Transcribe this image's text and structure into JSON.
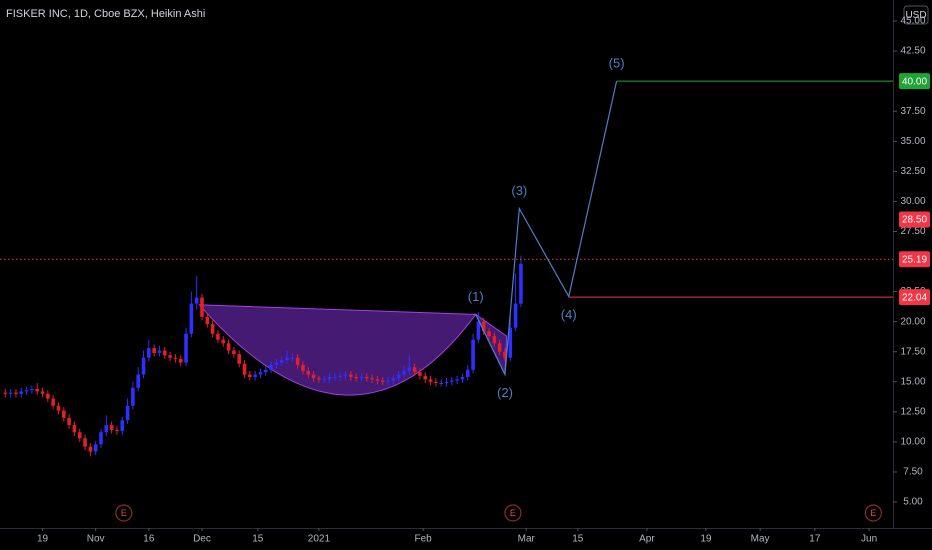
{
  "chart_data": {
    "type": "candlestick",
    "title": "FISKER INC, 1D, Cboe BZX, Heikin Ashi",
    "currency": "USD",
    "colors": {
      "up": "#2f2fff",
      "down": "#e3202a"
    },
    "open": [
      14.1,
      14.0,
      14.1,
      14.0,
      14.2,
      14.3,
      14.4,
      14.2,
      14.0,
      13.6,
      13.0,
      12.6,
      12.0,
      11.4,
      10.8,
      10.3,
      9.6,
      9.2,
      9.8,
      10.8,
      11.4,
      11.0,
      10.9,
      11.8,
      13.0,
      14.5,
      15.6,
      17.0,
      17.8,
      17.4,
      17.6,
      17.2,
      17.0,
      16.9,
      16.6,
      19.0,
      21.5,
      22.0,
      20.4,
      19.8,
      19.0,
      18.5,
      18.2,
      17.6,
      17.3,
      16.5,
      15.6,
      15.4,
      15.6,
      15.8,
      16.0,
      16.4,
      16.6,
      16.8,
      17.0,
      17.0,
      16.4,
      15.9,
      15.6,
      15.3,
      15.2,
      15.2,
      15.4,
      15.4,
      15.5,
      15.6,
      15.4,
      15.3,
      15.4,
      15.3,
      15.2,
      15.1,
      15.0,
      15.1,
      15.3,
      15.6,
      15.9,
      16.2,
      15.8,
      15.5,
      15.2,
      15.0,
      14.9,
      14.9,
      15.0,
      15.1,
      15.2,
      15.4,
      16.0,
      18.5,
      20.0,
      19.2,
      18.8,
      18.2,
      17.5,
      17.0,
      19.5,
      21.5
    ],
    "high": [
      14.4,
      14.4,
      14.4,
      14.5,
      14.6,
      14.7,
      14.9,
      14.5,
      14.3,
      13.9,
      13.3,
      12.9,
      12.3,
      11.7,
      11.1,
      10.6,
      9.9,
      10.1,
      11.1,
      12.2,
      11.7,
      11.3,
      12.1,
      13.6,
      15.0,
      16.2,
      17.6,
      18.5,
      18.1,
      18.0,
      17.9,
      17.5,
      17.3,
      17.2,
      19.5,
      22.5,
      23.8,
      22.3,
      20.7,
      20.1,
      19.3,
      18.8,
      18.5,
      17.9,
      17.6,
      16.8,
      15.9,
      15.9,
      16.1,
      16.3,
      16.7,
      16.9,
      17.1,
      17.6,
      17.4,
      17.3,
      16.7,
      16.2,
      15.9,
      15.5,
      15.5,
      15.7,
      15.7,
      15.8,
      15.9,
      15.9,
      15.7,
      15.7,
      15.7,
      15.6,
      15.5,
      15.4,
      15.4,
      15.6,
      15.9,
      16.4,
      17.2,
      16.5,
      16.1,
      15.8,
      15.5,
      15.3,
      15.2,
      15.3,
      15.4,
      15.5,
      15.7,
      16.4,
      19.0,
      20.8,
      20.3,
      19.5,
      19.1,
      18.5,
      17.8,
      20.5,
      24.0,
      25.5
    ],
    "low": [
      13.7,
      13.7,
      13.7,
      13.7,
      13.9,
      14.0,
      13.9,
      13.7,
      13.3,
      12.7,
      12.3,
      11.7,
      11.1,
      10.5,
      10.0,
      9.3,
      8.8,
      8.9,
      9.5,
      10.5,
      10.7,
      10.6,
      10.6,
      11.5,
      12.7,
      14.2,
      15.3,
      16.7,
      17.1,
      17.1,
      16.9,
      16.7,
      16.6,
      16.3,
      16.3,
      18.7,
      21.0,
      20.1,
      19.5,
      18.7,
      18.2,
      17.9,
      17.3,
      17.0,
      16.2,
      15.3,
      15.1,
      15.1,
      15.3,
      15.5,
      15.7,
      16.1,
      16.3,
      16.5,
      16.7,
      16.1,
      15.6,
      15.3,
      15.0,
      14.9,
      14.9,
      14.9,
      15.1,
      15.1,
      15.2,
      15.1,
      15.0,
      15.0,
      15.0,
      14.9,
      14.8,
      14.7,
      14.7,
      14.8,
      15.0,
      15.3,
      15.6,
      15.5,
      15.2,
      14.9,
      14.7,
      14.6,
      14.6,
      14.6,
      14.7,
      14.8,
      14.9,
      15.1,
      15.7,
      18.2,
      18.9,
      18.5,
      17.9,
      17.2,
      16.7,
      16.7,
      19.2,
      21.2
    ],
    "close": [
      14.0,
      14.1,
      14.0,
      14.2,
      14.3,
      14.4,
      14.2,
      14.0,
      13.6,
      13.0,
      12.6,
      12.0,
      11.4,
      10.8,
      10.3,
      9.6,
      9.2,
      9.8,
      10.8,
      11.4,
      11.0,
      10.9,
      11.8,
      13.0,
      14.5,
      15.6,
      17.0,
      17.8,
      17.4,
      17.6,
      17.2,
      17.0,
      16.9,
      16.6,
      19.0,
      21.5,
      22.0,
      20.4,
      19.8,
      19.0,
      18.5,
      18.2,
      17.6,
      17.3,
      16.5,
      15.6,
      15.4,
      15.6,
      15.8,
      16.0,
      16.4,
      16.6,
      16.8,
      17.0,
      17.0,
      16.4,
      15.9,
      15.6,
      15.3,
      15.2,
      15.2,
      15.4,
      15.4,
      15.5,
      15.6,
      15.4,
      15.3,
      15.4,
      15.3,
      15.2,
      15.1,
      15.0,
      15.1,
      15.3,
      15.6,
      15.9,
      16.2,
      15.8,
      15.5,
      15.2,
      15.0,
      14.9,
      14.9,
      15.0,
      15.1,
      15.2,
      15.4,
      16.0,
      18.5,
      20.0,
      19.2,
      18.8,
      18.2,
      17.5,
      17.0,
      19.5,
      21.5,
      24.8
    ],
    "xlim": [
      -1,
      167
    ],
    "xticks": [
      {
        "value": 7,
        "label": "19"
      },
      {
        "value": 17,
        "label": "Nov"
      },
      {
        "value": 27,
        "label": "16"
      },
      {
        "value": 37,
        "label": "Dec"
      },
      {
        "value": 47.5,
        "label": "15"
      },
      {
        "value": 59,
        "label": "2021"
      },
      {
        "value": 78.6,
        "label": "Feb"
      },
      {
        "value": 98,
        "label": "Mar"
      },
      {
        "value": 107.7,
        "label": "15"
      },
      {
        "value": 120.7,
        "label": "Apr"
      },
      {
        "value": 131.8,
        "label": "19"
      },
      {
        "value": 142,
        "label": "May"
      },
      {
        "value": 152.3,
        "label": "17"
      },
      {
        "value": 162.5,
        "label": "Jun"
      }
    ],
    "ylim": [
      2.84,
      46.75
    ],
    "yticks": [
      {
        "value": 5,
        "label": "5.00"
      },
      {
        "value": 7.5,
        "label": "7.50"
      },
      {
        "value": 10,
        "label": "10.00"
      },
      {
        "value": 12.5,
        "label": "12.50"
      },
      {
        "value": 15,
        "label": "15.00"
      },
      {
        "value": 17.5,
        "label": "17.50"
      },
      {
        "value": 20,
        "label": "20.00"
      },
      {
        "value": 22.5,
        "label": "22.50"
      },
      {
        "value": 27.5,
        "label": "27.50"
      },
      {
        "value": 30,
        "label": "30.00"
      },
      {
        "value": 32.5,
        "label": "32.50"
      },
      {
        "value": 35,
        "label": "35.00"
      },
      {
        "value": 37.5,
        "label": "37.50"
      },
      {
        "value": 42.5,
        "label": "42.50"
      },
      {
        "value": 45,
        "label": "45.00"
      }
    ],
    "cup": {
      "x": [
        36.5,
        64,
        88.5
      ],
      "y": [
        21.4,
        13.9,
        20.6
      ],
      "color": "#7b2fd0"
    },
    "handle": {
      "x": [
        88.5,
        94,
        94.3
      ],
      "y": [
        20.6,
        15.6,
        18.8
      ],
      "color": "#7b2fd0"
    },
    "waves": {
      "labels": [
        "(1)",
        "(2)",
        "(3)",
        "(4)",
        "(5)"
      ],
      "x": [
        88.5,
        94,
        96.7,
        106,
        115
      ],
      "y": [
        20.6,
        15.6,
        29.4,
        22.1,
        40.0
      ],
      "color": "#4f7fc4"
    },
    "levels": [
      {
        "value": 40,
        "label": "40.00",
        "color": "#1ea535",
        "style": "solid",
        "x_start": 115
      },
      {
        "value": 28.5,
        "label": "28.50",
        "color": "#f23645",
        "style": "none"
      },
      {
        "value": 25.19,
        "label": "25.19",
        "color": "#f23645",
        "style": "dotted"
      },
      {
        "value": 22.04,
        "label": "22.04",
        "color": "#f23645",
        "style": "solid",
        "x_start": 106
      }
    ],
    "earnings": {
      "x": [
        22.3,
        95.5,
        163.3
      ],
      "labels": [
        "E",
        "E",
        "E"
      ]
    }
  }
}
